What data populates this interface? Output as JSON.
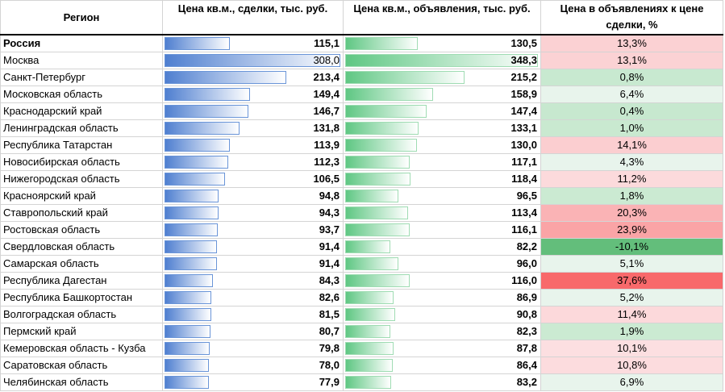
{
  "header": {
    "region": "Регион",
    "deal_price": "Цена кв.м., сделки, тыс. руб.",
    "ad_price": "Цена кв.м., объявления, тыс. руб.",
    "ratio": "Цена в объявлениях к цене сделки, %"
  },
  "scale": {
    "deal_max": 308.0,
    "ad_max": 348.3,
    "ratio_min": -10.1,
    "ratio_max": 37.6
  },
  "colors": {
    "deal_bar": "#4f7fd0",
    "ad_bar": "#5fc783",
    "ratio_positive": "#f8696b",
    "ratio_negative": "#63be7b"
  },
  "rows": [
    {
      "region": "Россия",
      "deal": "115,1",
      "ad": "130,5",
      "ratio": "13,3%",
      "deal_v": 115.1,
      "ad_v": 130.5,
      "ratio_v": 13.3
    },
    {
      "region": "Москва",
      "deal": "308,0",
      "ad": "348,3",
      "ratio": "13,1%",
      "deal_v": 308.0,
      "ad_v": 348.3,
      "ratio_v": 13.1
    },
    {
      "region": "Санкт-Петербург",
      "deal": "213,4",
      "ad": "215,2",
      "ratio": "0,8%",
      "deal_v": 213.4,
      "ad_v": 215.2,
      "ratio_v": 0.8
    },
    {
      "region": "Московская область",
      "deal": "149,4",
      "ad": "158,9",
      "ratio": "6,4%",
      "deal_v": 149.4,
      "ad_v": 158.9,
      "ratio_v": 6.4
    },
    {
      "region": "Краснодарский край",
      "deal": "146,7",
      "ad": "147,4",
      "ratio": "0,4%",
      "deal_v": 146.7,
      "ad_v": 147.4,
      "ratio_v": 0.4
    },
    {
      "region": "Ленинградская область",
      "deal": "131,8",
      "ad": "133,1",
      "ratio": "1,0%",
      "deal_v": 131.8,
      "ad_v": 133.1,
      "ratio_v": 1.0
    },
    {
      "region": "Республика Татарстан",
      "deal": "113,9",
      "ad": "130,0",
      "ratio": "14,1%",
      "deal_v": 113.9,
      "ad_v": 130.0,
      "ratio_v": 14.1
    },
    {
      "region": "Новосибирская область",
      "deal": "112,3",
      "ad": "117,1",
      "ratio": "4,3%",
      "deal_v": 112.3,
      "ad_v": 117.1,
      "ratio_v": 4.3
    },
    {
      "region": "Нижегородская область",
      "deal": "106,5",
      "ad": "118,4",
      "ratio": "11,2%",
      "deal_v": 106.5,
      "ad_v": 118.4,
      "ratio_v": 11.2
    },
    {
      "region": "Красноярский край",
      "deal": "94,8",
      "ad": "96,5",
      "ratio": "1,8%",
      "deal_v": 94.8,
      "ad_v": 96.5,
      "ratio_v": 1.8
    },
    {
      "region": "Ставропольский край",
      "deal": "94,3",
      "ad": "113,4",
      "ratio": "20,3%",
      "deal_v": 94.3,
      "ad_v": 113.4,
      "ratio_v": 20.3
    },
    {
      "region": "Ростовская область",
      "deal": "93,7",
      "ad": "116,1",
      "ratio": "23,9%",
      "deal_v": 93.7,
      "ad_v": 116.1,
      "ratio_v": 23.9
    },
    {
      "region": "Свердловская область",
      "deal": "91,4",
      "ad": "82,2",
      "ratio": "-10,1%",
      "deal_v": 91.4,
      "ad_v": 82.2,
      "ratio_v": -10.1
    },
    {
      "region": "Самарская область",
      "deal": "91,4",
      "ad": "96,0",
      "ratio": "5,1%",
      "deal_v": 91.4,
      "ad_v": 96.0,
      "ratio_v": 5.1
    },
    {
      "region": "Республика Дагестан",
      "deal": "84,3",
      "ad": "116,0",
      "ratio": "37,6%",
      "deal_v": 84.3,
      "ad_v": 116.0,
      "ratio_v": 37.6
    },
    {
      "region": "Республика Башкортостан",
      "deal": "82,6",
      "ad": "86,9",
      "ratio": "5,2%",
      "deal_v": 82.6,
      "ad_v": 86.9,
      "ratio_v": 5.2
    },
    {
      "region": "Волгоградская область",
      "deal": "81,5",
      "ad": "90,8",
      "ratio": "11,4%",
      "deal_v": 81.5,
      "ad_v": 90.8,
      "ratio_v": 11.4
    },
    {
      "region": "Пермский край",
      "deal": "80,7",
      "ad": "82,3",
      "ratio": "1,9%",
      "deal_v": 80.7,
      "ad_v": 82.3,
      "ratio_v": 1.9
    },
    {
      "region": "Кемеровская область - Кузба",
      "deal": "79,8",
      "ad": "87,8",
      "ratio": "10,1%",
      "deal_v": 79.8,
      "ad_v": 87.8,
      "ratio_v": 10.1
    },
    {
      "region": "Саратовская область",
      "deal": "78,0",
      "ad": "86,4",
      "ratio": "10,8%",
      "deal_v": 78.0,
      "ad_v": 86.4,
      "ratio_v": 10.8
    },
    {
      "region": "Челябинская область",
      "deal": "77,9",
      "ad": "83,2",
      "ratio": "6,9%",
      "deal_v": 77.9,
      "ad_v": 83.2,
      "ratio_v": 6.9
    }
  ]
}
